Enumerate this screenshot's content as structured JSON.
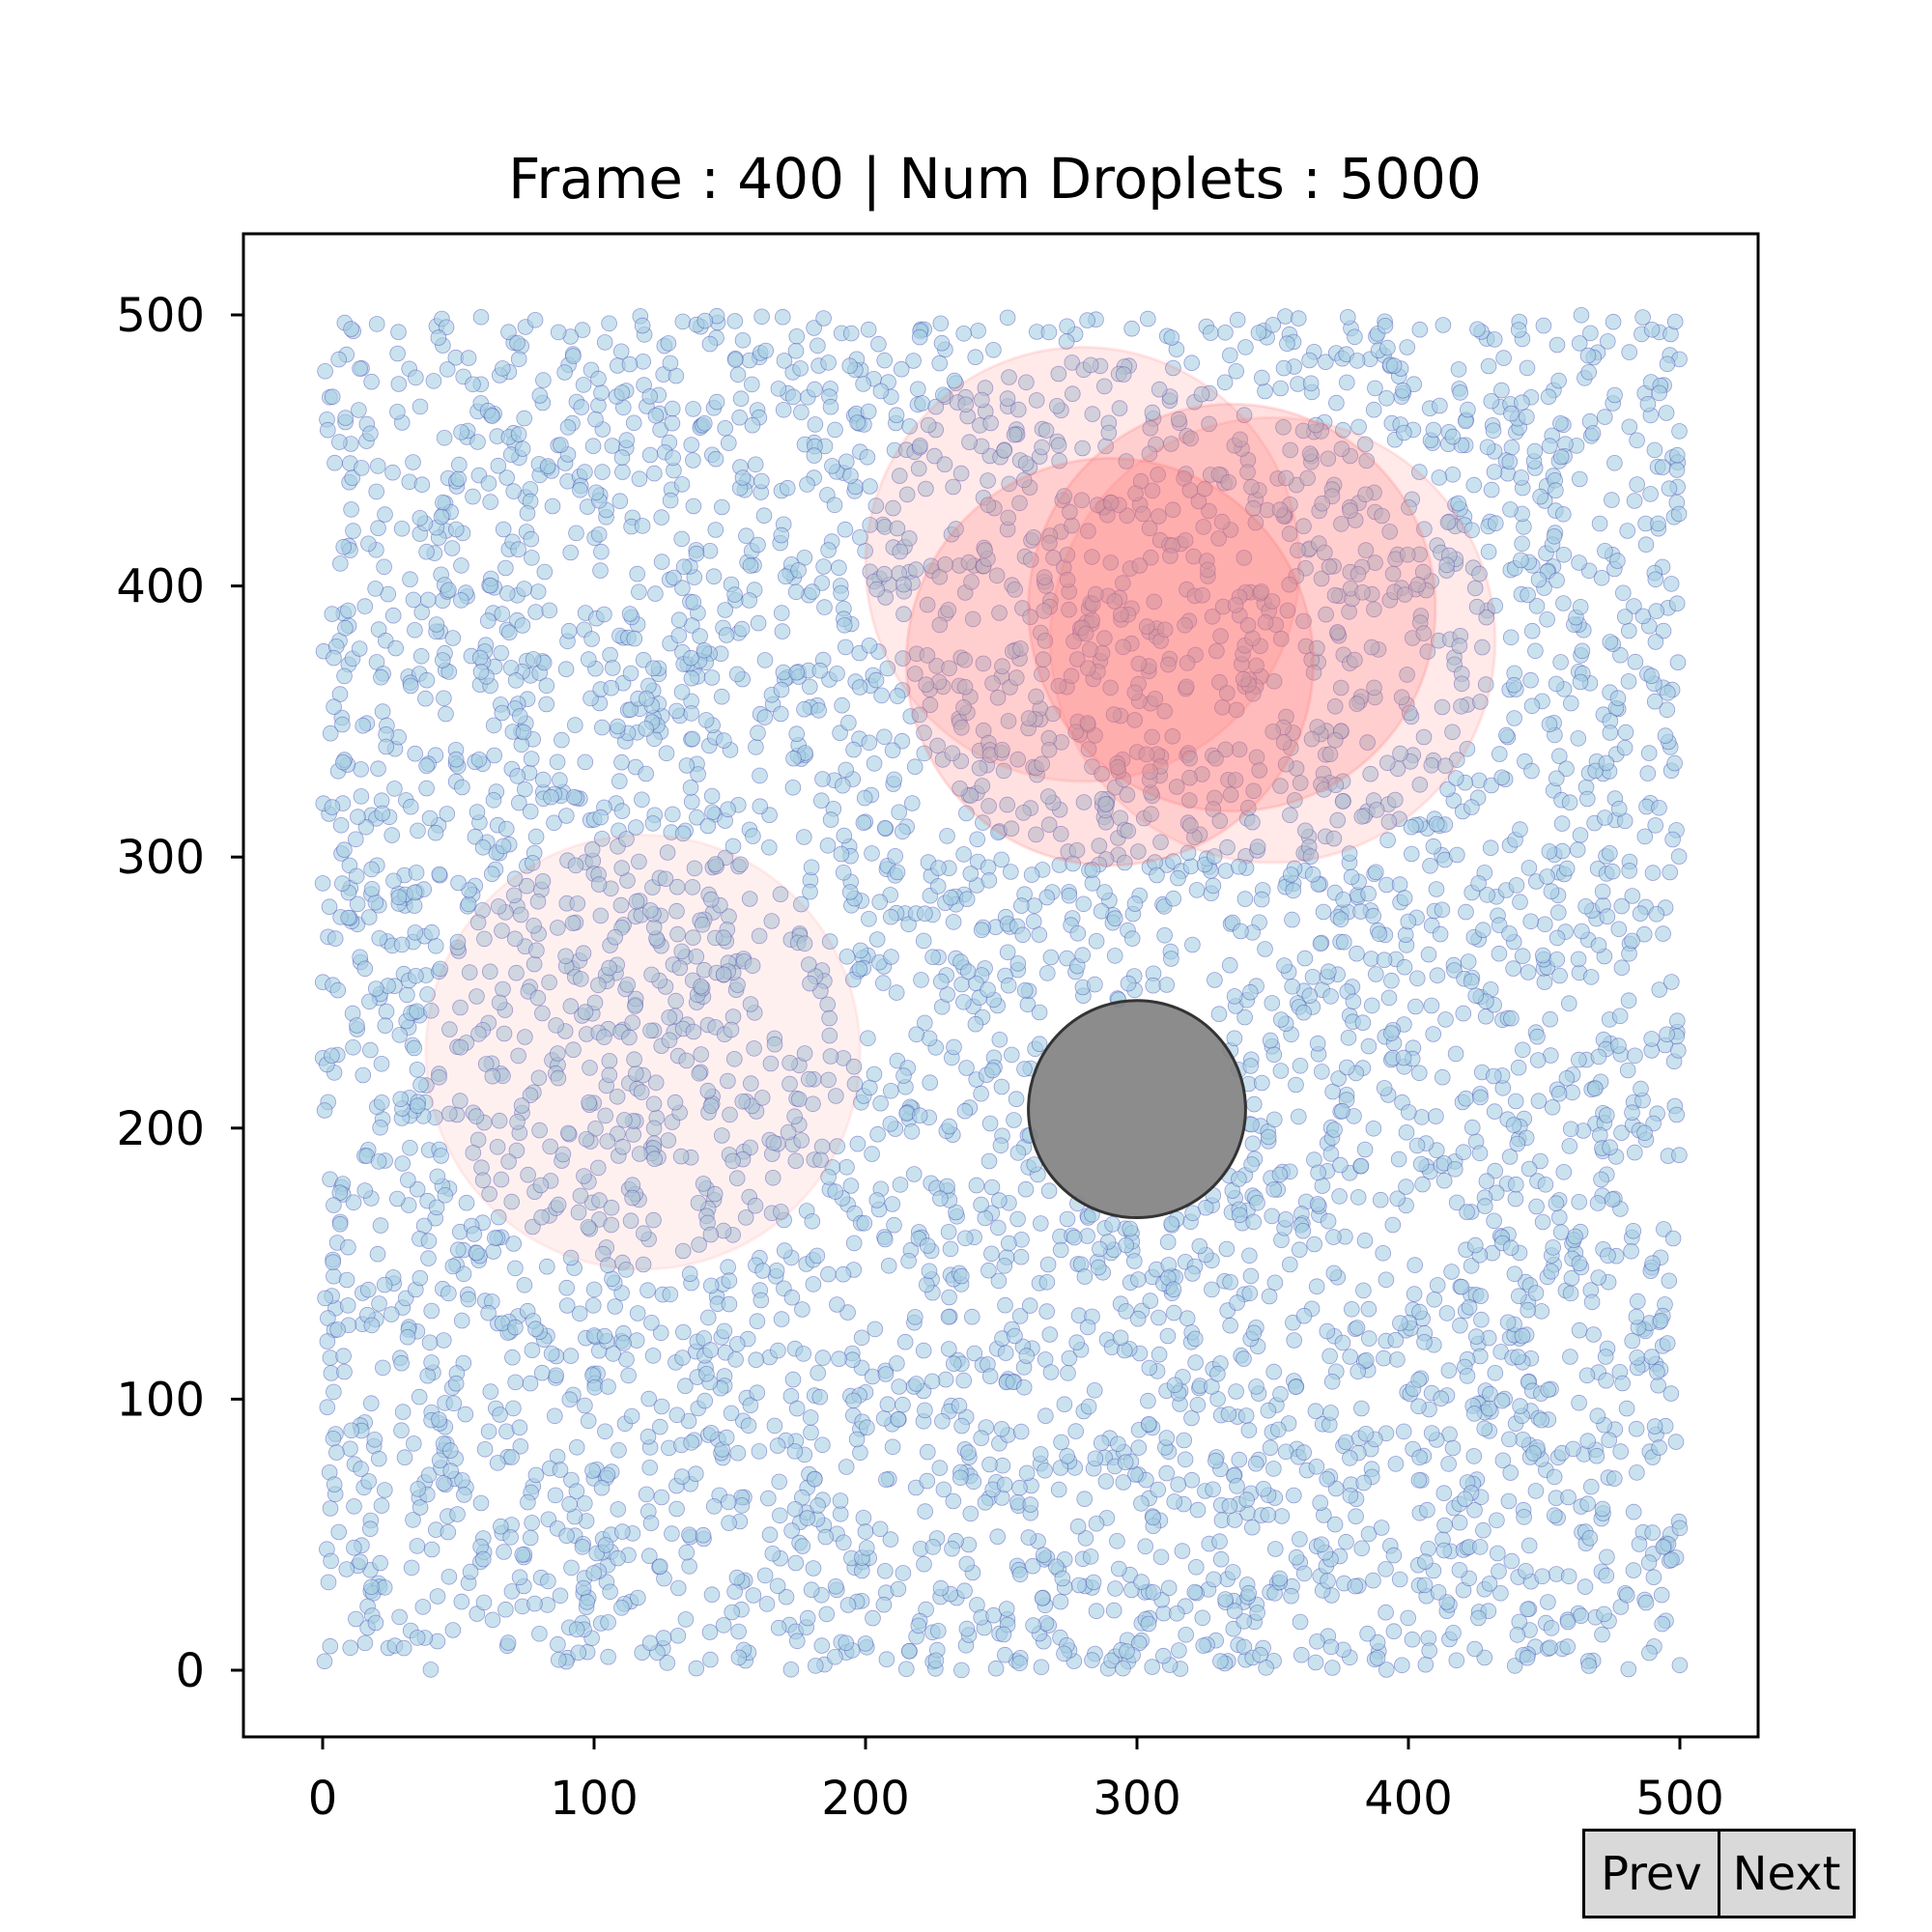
{
  "chart_data": {
    "type": "scatter",
    "title": "Frame : 400 | Num Droplets : 5000",
    "xlim": [
      -30,
      530
    ],
    "ylim": [
      -25,
      530
    ],
    "xticks": [
      0,
      100,
      200,
      300,
      400,
      500
    ],
    "yticks": [
      0,
      100,
      200,
      300,
      400,
      500
    ],
    "grid": false,
    "droplets": {
      "count": 5000,
      "x_range": [
        0,
        500
      ],
      "y_range": [
        0,
        500
      ],
      "radius": 2.8,
      "fill_color": "#a6cee3",
      "edge_color": "#3a3ab0",
      "alpha": 0.6
    },
    "red_circles": [
      {
        "cx": 118,
        "cy": 228,
        "r": 80,
        "alpha": 0.1
      },
      {
        "cx": 280,
        "cy": 408,
        "r": 80,
        "alpha": 0.15
      },
      {
        "cx": 290,
        "cy": 372,
        "r": 75,
        "alpha": 0.2
      },
      {
        "cx": 335,
        "cy": 392,
        "r": 75,
        "alpha": 0.2
      },
      {
        "cx": 350,
        "cy": 380,
        "r": 82,
        "alpha": 0.15
      }
    ],
    "red_color": "#ff6b6b",
    "obstacle": {
      "cx": 300,
      "cy": 207,
      "r": 40,
      "color": "#808080",
      "edge_color": "#333333"
    }
  },
  "nav": {
    "prev_label": "Prev",
    "next_label": "Next"
  }
}
